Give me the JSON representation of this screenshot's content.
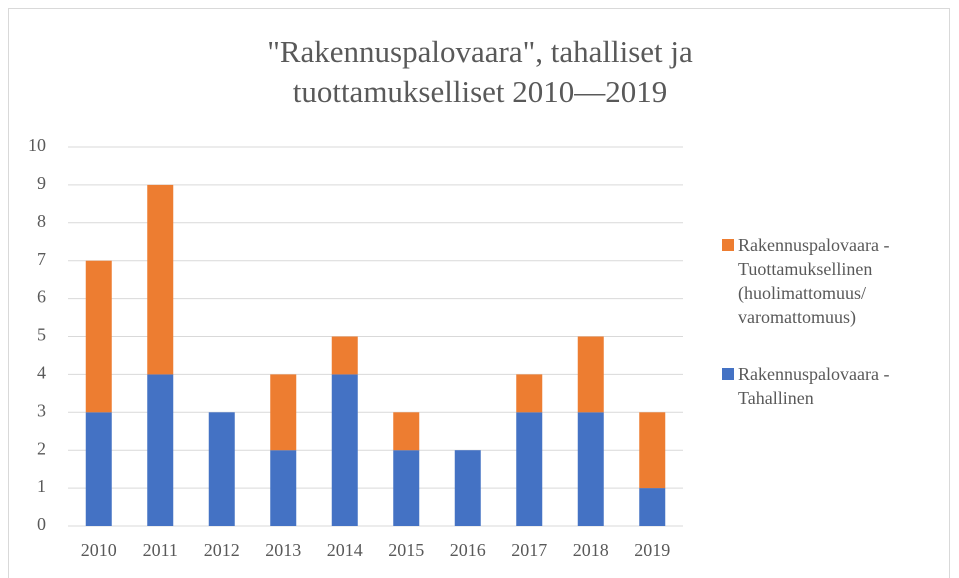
{
  "chart_data": {
    "type": "stacked-bar",
    "title": "\"Rakennuspalovaara\", tahalliset ja tuottamukselliset 2010—2019",
    "categories": [
      "2010",
      "2011",
      "2012",
      "2013",
      "2014",
      "2015",
      "2016",
      "2017",
      "2018",
      "2019"
    ],
    "series": [
      {
        "name": "Rakennuspalovaara - Tahallinen",
        "color": "#4472c4",
        "values": [
          3,
          4,
          3,
          2,
          4,
          2,
          2,
          3,
          3,
          1
        ]
      },
      {
        "name": "Rakennuspalovaara - Tuottamuksellinen (huolimattomuus/ varomattomuus)",
        "color": "#ed7d31",
        "values": [
          4,
          5,
          0,
          2,
          1,
          1,
          0,
          1,
          2,
          2
        ]
      }
    ],
    "ylim": [
      0,
      10
    ],
    "yticks": [
      0,
      1,
      2,
      3,
      4,
      5,
      6,
      7,
      8,
      9,
      10
    ],
    "grid": true,
    "legend": "right"
  }
}
